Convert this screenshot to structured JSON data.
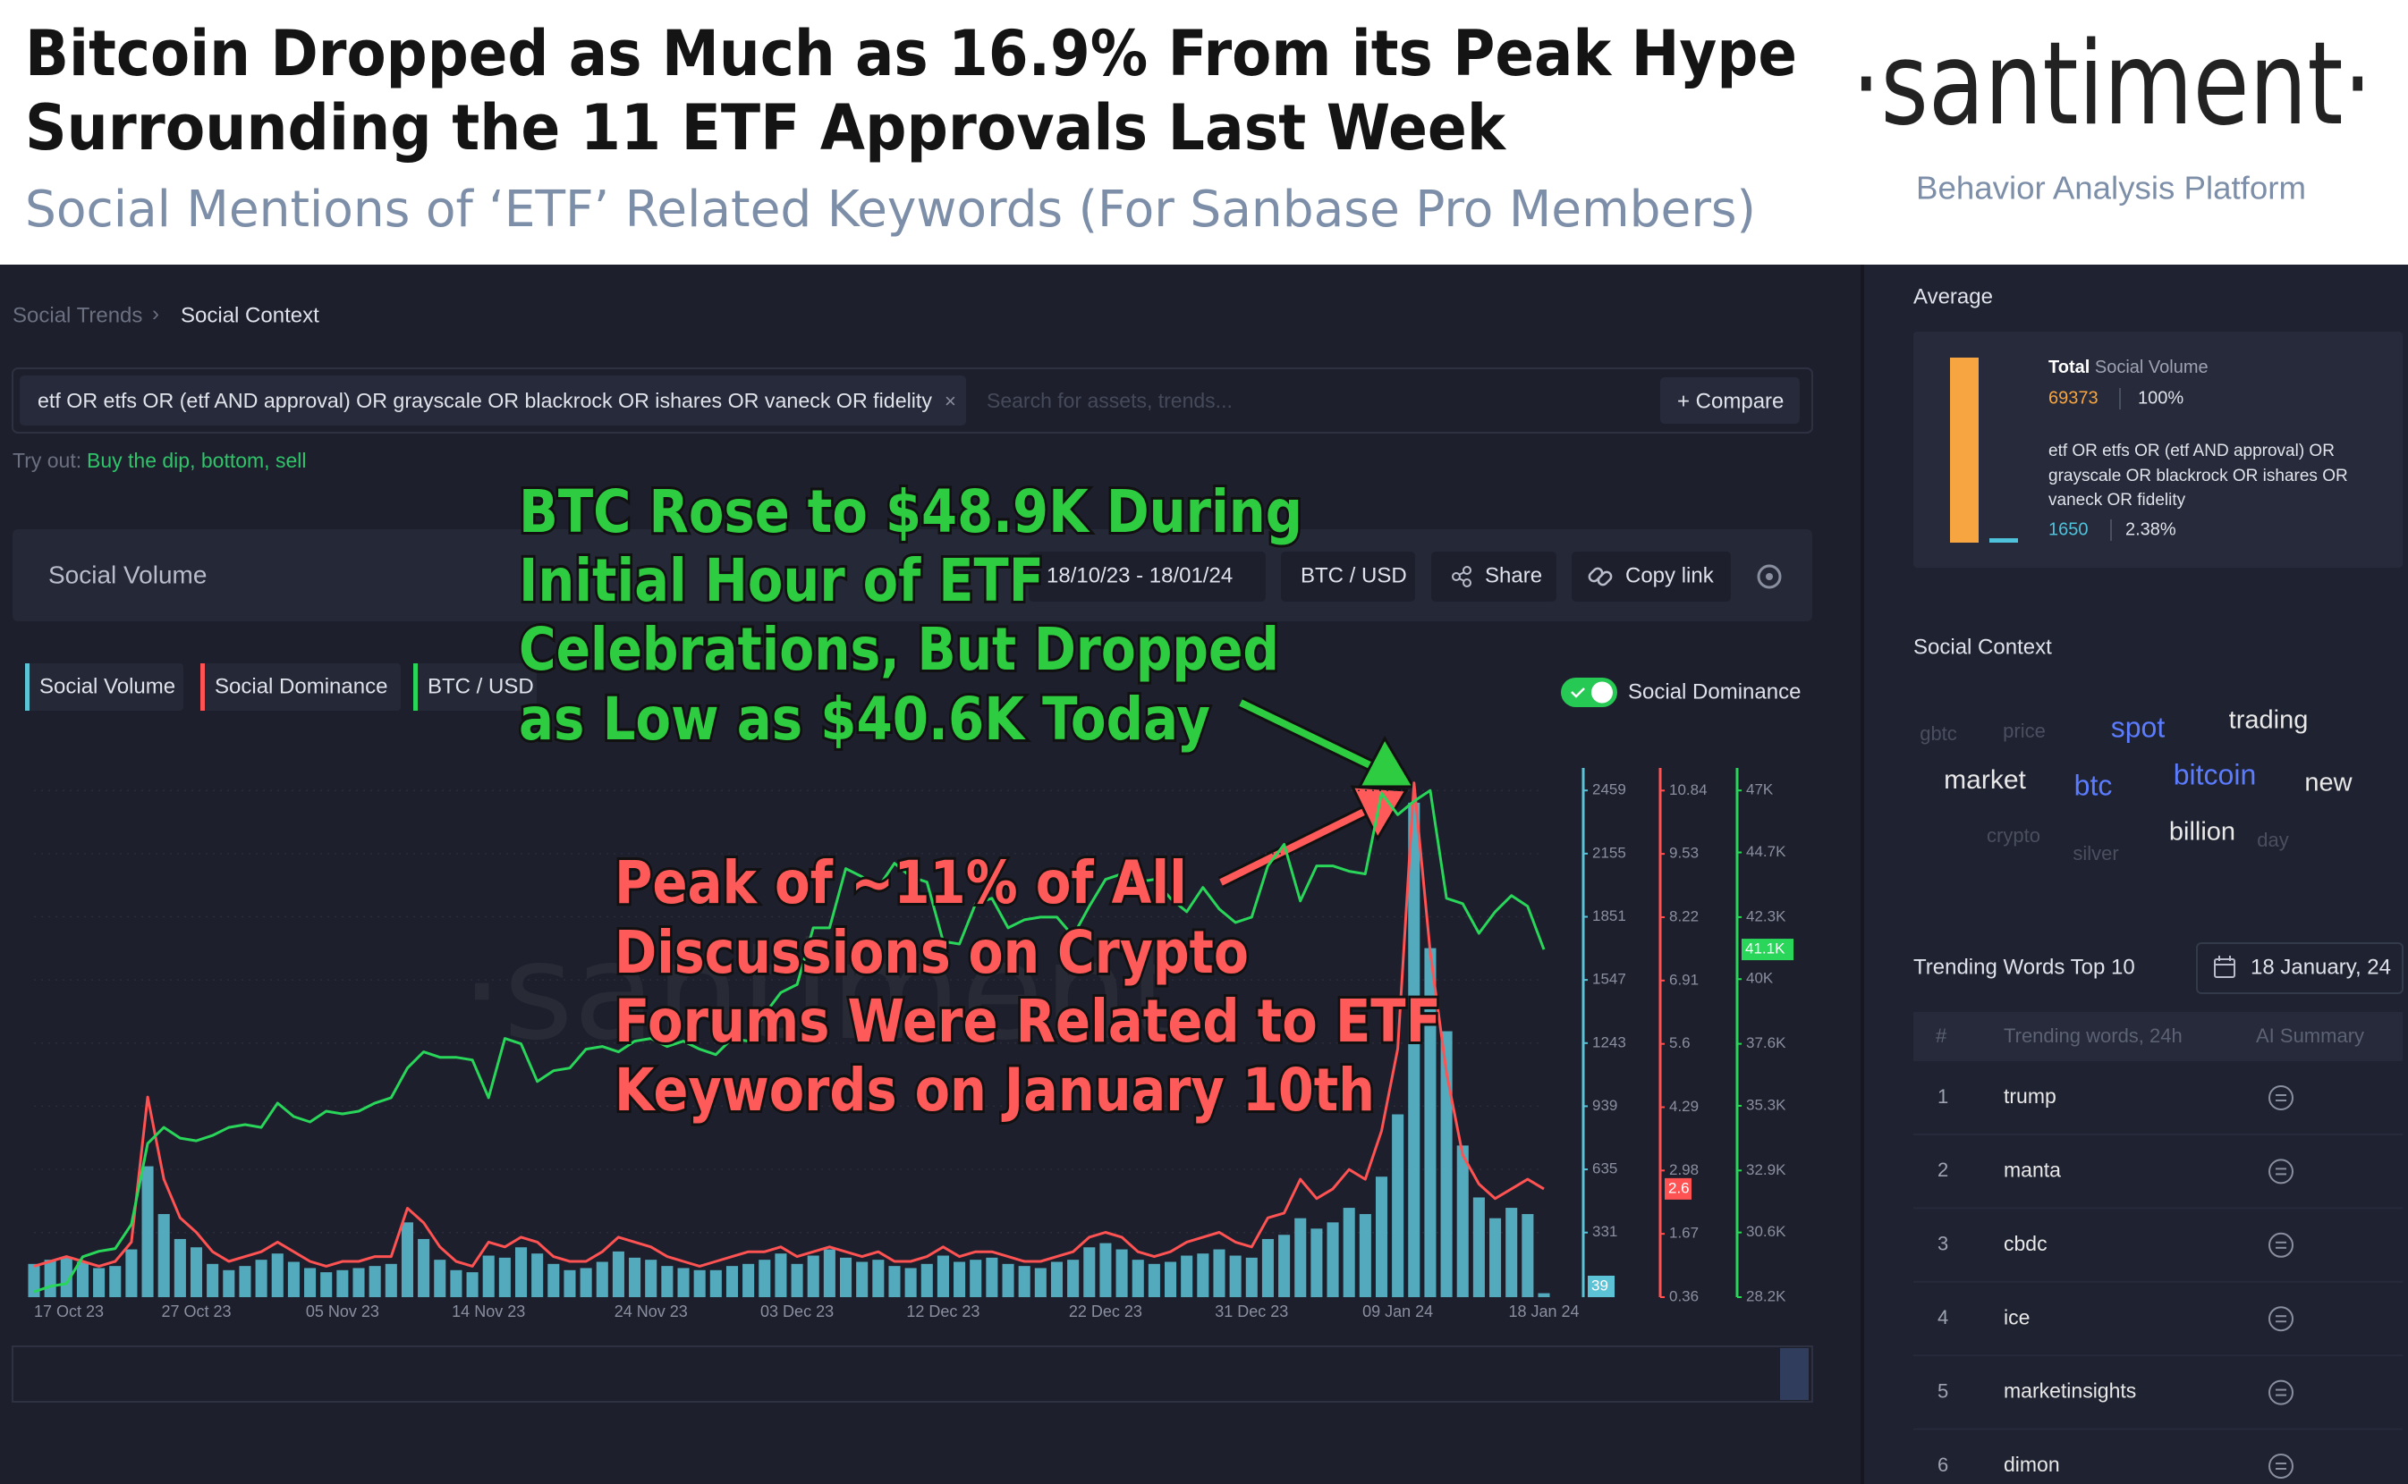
{
  "header": {
    "title_lines": [
      "Bitcoin Dropped as Much as 16.9% From its Peak Hype",
      "Surrounding the 11 ETF Approvals Last Week"
    ],
    "subtitle": "Social Mentions of ‘ETF’ Related Keywords (For Sanbase Pro Members)",
    "logo": "·santiment·",
    "tagline": "Behavior Analysis Platform"
  },
  "breadcrumb": [
    "Social Trends",
    "Social Context"
  ],
  "search": {
    "query": "etf OR etfs OR (etf AND approval) OR grayscale OR blackrock OR ishares OR vaneck OR fidelity",
    "placeholder": "Search for assets, trends...",
    "compare": "+ Compare"
  },
  "try_out": {
    "label": "Try out:",
    "suggestions": "Buy the dip, bottom, sell"
  },
  "toolbar": {
    "title": "Social Volume",
    "date_range": "18/10/23 - 18/01/24",
    "pair": "BTC / USD",
    "share": "Share",
    "copy_link": "Copy link",
    "toggle": "Social Dominance"
  },
  "chart_data": {
    "type": "combo",
    "categories": [
      "17 Oct 23",
      null,
      null,
      null,
      null,
      null,
      null,
      null,
      null,
      null,
      "27 Oct 23",
      null,
      null,
      null,
      null,
      null,
      null,
      null,
      null,
      "05 Nov 23",
      null,
      null,
      null,
      null,
      null,
      null,
      null,
      null,
      "14 Nov 23",
      null,
      null,
      null,
      null,
      null,
      null,
      null,
      null,
      null,
      "24 Nov 23",
      null,
      null,
      null,
      null,
      null,
      null,
      null,
      null,
      "03 Dec 23",
      null,
      null,
      null,
      null,
      null,
      null,
      null,
      null,
      "12 Dec 23",
      null,
      null,
      null,
      null,
      null,
      null,
      null,
      null,
      null,
      "22 Dec 23",
      null,
      null,
      null,
      null,
      null,
      null,
      null,
      null,
      "31 Dec 23",
      null,
      null,
      null,
      null,
      null,
      null,
      null,
      null,
      "09 Jan 24",
      null,
      null,
      null,
      null,
      null,
      null,
      null,
      null,
      "18 Jan 24"
    ],
    "series": [
      {
        "name": "Social Volume",
        "type": "bar",
        "axis": "y",
        "color": "#5cc3d6",
        "values": [
          180,
          200,
          210,
          190,
          160,
          170,
          250,
          650,
          420,
          300,
          260,
          180,
          150,
          170,
          200,
          230,
          190,
          160,
          140,
          150,
          160,
          170,
          180,
          380,
          300,
          200,
          150,
          140,
          220,
          210,
          260,
          230,
          180,
          150,
          160,
          190,
          240,
          210,
          200,
          170,
          160,
          150,
          150,
          170,
          180,
          200,
          230,
          180,
          220,
          250,
          210,
          190,
          200,
          170,
          160,
          180,
          220,
          190,
          200,
          210,
          180,
          170,
          160,
          190,
          200,
          260,
          280,
          250,
          200,
          180,
          190,
          220,
          230,
          250,
          220,
          210,
          300,
          320,
          400,
          350,
          380,
          450,
          420,
          600,
          900,
          2400,
          1700,
          1300,
          750,
          500,
          400,
          450,
          420,
          39
        ]
      },
      {
        "name": "Social Dominance",
        "type": "line",
        "axis": "y2",
        "color": "#ff5252",
        "values": [
          1.0,
          1.1,
          1.2,
          1.1,
          1.0,
          1.1,
          1.5,
          4.5,
          2.8,
          2.0,
          1.7,
          1.3,
          1.1,
          1.2,
          1.3,
          1.5,
          1.3,
          1.1,
          1.0,
          1.1,
          1.1,
          1.2,
          1.2,
          2.2,
          1.9,
          1.4,
          1.1,
          1.0,
          1.5,
          1.4,
          1.6,
          1.5,
          1.2,
          1.1,
          1.1,
          1.3,
          1.6,
          1.5,
          1.4,
          1.2,
          1.1,
          1.0,
          1.1,
          1.2,
          1.3,
          1.3,
          1.4,
          1.2,
          1.3,
          1.4,
          1.3,
          1.2,
          1.3,
          1.1,
          1.1,
          1.2,
          1.4,
          1.2,
          1.3,
          1.3,
          1.2,
          1.1,
          1.1,
          1.2,
          1.3,
          1.6,
          1.7,
          1.6,
          1.3,
          1.2,
          1.3,
          1.5,
          1.6,
          1.7,
          1.5,
          1.4,
          2.0,
          2.1,
          2.8,
          2.4,
          2.6,
          3.0,
          2.8,
          3.8,
          5.5,
          11.0,
          7.5,
          5.0,
          3.3,
          2.7,
          2.4,
          2.6,
          2.8,
          2.6
        ]
      },
      {
        "name": "BTC / USD",
        "type": "line",
        "axis": "y3",
        "color": "#29d65a",
        "current_label": "41.1K",
        "values": [
          28400,
          28600,
          28700,
          29700,
          29900,
          30000,
          30900,
          33900,
          34500,
          34100,
          34000,
          34200,
          34500,
          34600,
          34500,
          35400,
          34900,
          34700,
          35100,
          35000,
          35100,
          35400,
          35600,
          36700,
          37300,
          37100,
          37100,
          37000,
          35600,
          37800,
          37600,
          36200,
          36600,
          36700,
          37400,
          37500,
          37300,
          37700,
          37800,
          37500,
          37700,
          37400,
          37200,
          37800,
          37700,
          38700,
          39500,
          39800,
          41900,
          41900,
          44100,
          43800,
          43400,
          44300,
          43800,
          43600,
          41400,
          41300,
          42800,
          43000,
          41900,
          42200,
          42300,
          42300,
          41600,
          42700,
          43700,
          43900,
          43600,
          43700,
          43000,
          42500,
          43400,
          42600,
          42100,
          42300,
          44200,
          45000,
          42900,
          44200,
          44200,
          44000,
          43900,
          46900,
          46100,
          46600,
          47000,
          43000,
          42800,
          41700,
          42500,
          43100,
          42700,
          41100
        ]
      }
    ],
    "ylim": [
      20,
      2533
    ],
    "yticks": [
      331,
      635,
      939,
      1243,
      1547,
      1851,
      2155,
      2459
    ],
    "y2lim": [
      0.36,
      11.16
    ],
    "y2ticks": [
      0.36,
      1.67,
      2.98,
      4.29,
      5.6,
      6.91,
      8.22,
      9.53,
      10.84
    ],
    "y3lim": [
      28200,
      47570
    ],
    "y3ticks": [
      {
        "value": 28200,
        "label": "28.2K"
      },
      {
        "value": 30600,
        "label": "30.6K"
      },
      {
        "value": 32900,
        "label": "32.9K"
      },
      {
        "value": 35300,
        "label": "35.3K"
      },
      {
        "value": 37600,
        "label": "37.6K"
      },
      {
        "value": 40000,
        "label": "40K"
      },
      {
        "value": 42300,
        "label": "42.3K"
      },
      {
        "value": 44700,
        "label": "44.7K"
      },
      {
        "value": 47000,
        "label": "47K"
      }
    ],
    "grid": true,
    "watermark": "·santiment",
    "annotations": [
      {
        "color": "#2ecc40",
        "lines": [
          "BTC Rose to $48.9K During",
          "Initial Hour of ETF",
          "Celebrations, But Dropped",
          "as Low as $40.6K Today"
        ]
      },
      {
        "color": "#ff5a5a",
        "lines": [
          "Peak of ~11% of All",
          "Discussions on Crypto",
          "Forums Were Related to ETF",
          "Keywords on January 10th"
        ]
      }
    ]
  },
  "sidebar": {
    "average": {
      "title": "Average",
      "total_label": "Total",
      "total_metric": "Social Volume",
      "total_value": 69373,
      "total_pct": "100%",
      "query_lines": [
        "etf OR etfs OR (etf AND approval) OR",
        "grayscale OR blackrock OR ishares OR",
        "vaneck OR fidelity"
      ],
      "query_value": 1650,
      "query_pct": "2.38%"
    },
    "social_context": {
      "title": "Social Context",
      "words": [
        {
          "text": "gbtc",
          "color": "#4a4f60"
        },
        {
          "text": "price",
          "color": "#4a4f60"
        },
        {
          "text": "spot",
          "color": "#5b7cff"
        },
        {
          "text": "trading",
          "color": "#e8e8e8"
        },
        {
          "text": "market",
          "color": "#e8e8e8"
        },
        {
          "text": "btc",
          "color": "#5b7cff"
        },
        {
          "text": "bitcoin",
          "color": "#5b7cff"
        },
        {
          "text": "new",
          "color": "#e8e8e8"
        },
        {
          "text": "crypto",
          "color": "#4a4f60"
        },
        {
          "text": "silver",
          "color": "#4a4f60"
        },
        {
          "text": "billion",
          "color": "#e8e8e8"
        },
        {
          "text": "day",
          "color": "#4a4f60"
        }
      ]
    },
    "trending": {
      "title": "Trending Words Top 10",
      "date": "18 January, 24",
      "columns": [
        "#",
        "Trending words, 24h",
        "AI Summary"
      ],
      "rows": [
        [
          1,
          "trump"
        ],
        [
          2,
          "manta"
        ],
        [
          3,
          "cbdc"
        ],
        [
          4,
          "ice"
        ],
        [
          5,
          "marketinsights"
        ],
        [
          6,
          "dimon"
        ]
      ]
    }
  }
}
